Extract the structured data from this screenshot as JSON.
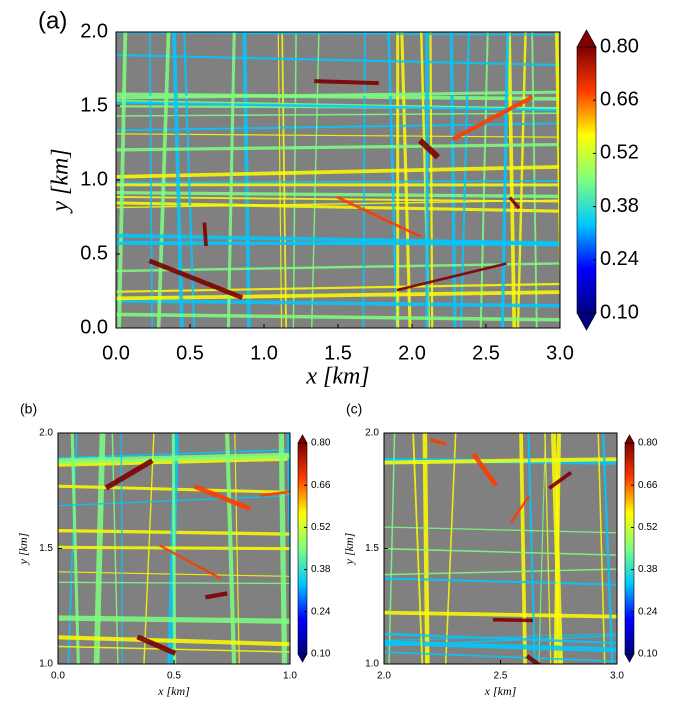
{
  "chart_data": [
    {
      "type": "heatmap",
      "panel_label": "(a)",
      "xlabel": "x [km]",
      "ylabel": "y [km]",
      "xlim": [
        0,
        3
      ],
      "ylim": [
        0,
        2
      ],
      "xticks": [
        {
          "value": 0,
          "label": "0.0"
        },
        {
          "value": 0.5,
          "label": "0.5"
        },
        {
          "value": 1,
          "label": "1.0"
        },
        {
          "value": 1.5,
          "label": "1.5"
        },
        {
          "value": 2,
          "label": "2.0"
        },
        {
          "value": 2.5,
          "label": "2.5"
        },
        {
          "value": 3,
          "label": "3.0"
        }
      ],
      "yticks": [
        {
          "value": 0,
          "label": "0.0"
        },
        {
          "value": 0.5,
          "label": "0.5"
        },
        {
          "value": 1,
          "label": "1.0"
        },
        {
          "value": 1.5,
          "label": "1.5"
        },
        {
          "value": 2,
          "label": "2.0"
        }
      ],
      "clim": [
        0.1,
        0.8
      ],
      "cticks": [
        {
          "value": 0.1,
          "label": "0.10"
        },
        {
          "value": 0.24,
          "label": "0.24"
        },
        {
          "value": 0.38,
          "label": "0.38"
        },
        {
          "value": 0.52,
          "label": "0.52"
        },
        {
          "value": 0.66,
          "label": "0.66"
        },
        {
          "value": 0.8,
          "label": "0.80"
        }
      ],
      "colormap": [
        "#00007f",
        "#0000ff",
        "#00c8ff",
        "#7fff7f",
        "#ffff00",
        "#ff3c00",
        "#7f0000"
      ]
    },
    {
      "type": "heatmap",
      "panel_label": "(b)",
      "xlabel": "x [km]",
      "ylabel": "y [km]",
      "xlim": [
        0,
        1
      ],
      "ylim": [
        1,
        2
      ],
      "xticks": [
        {
          "value": 0,
          "label": "0.0"
        },
        {
          "value": 0.5,
          "label": "0.5"
        },
        {
          "value": 1,
          "label": "1.0"
        }
      ],
      "yticks": [
        {
          "value": 1,
          "label": "1.0"
        },
        {
          "value": 1.5,
          "label": "1.5"
        },
        {
          "value": 2,
          "label": "2.0"
        }
      ],
      "clim": [
        0.1,
        0.8
      ],
      "cticks": [
        {
          "value": 0.1,
          "label": "0.10"
        },
        {
          "value": 0.24,
          "label": "0.24"
        },
        {
          "value": 0.38,
          "label": "0.38"
        },
        {
          "value": 0.52,
          "label": "0.52"
        },
        {
          "value": 0.66,
          "label": "0.66"
        },
        {
          "value": 0.8,
          "label": "0.80"
        }
      ],
      "colormap": [
        "#00007f",
        "#0000ff",
        "#00c8ff",
        "#7fff7f",
        "#ffff00",
        "#ff3c00",
        "#7f0000"
      ]
    },
    {
      "type": "heatmap",
      "panel_label": "(c)",
      "xlabel": "x [km]",
      "ylabel": "y [km]",
      "xlim": [
        2,
        3
      ],
      "ylim": [
        1,
        2
      ],
      "xticks": [
        {
          "value": 2,
          "label": "2.0"
        },
        {
          "value": 2.5,
          "label": "2.5"
        },
        {
          "value": 3,
          "label": "3.0"
        }
      ],
      "yticks": [
        {
          "value": 1,
          "label": "1.0"
        },
        {
          "value": 1.5,
          "label": "1.5"
        },
        {
          "value": 2,
          "label": "2.0"
        }
      ],
      "clim": [
        0.1,
        0.8
      ],
      "cticks": [
        {
          "value": 0.1,
          "label": "0.10"
        },
        {
          "value": 0.24,
          "label": "0.24"
        },
        {
          "value": 0.38,
          "label": "0.38"
        },
        {
          "value": 0.52,
          "label": "0.52"
        },
        {
          "value": 0.66,
          "label": "0.66"
        },
        {
          "value": 0.8,
          "label": "0.80"
        }
      ],
      "colormap": [
        "#00007f",
        "#0000ff",
        "#00c8ff",
        "#7fff7f",
        "#ffff00",
        "#ff3c00",
        "#7f0000"
      ]
    }
  ]
}
